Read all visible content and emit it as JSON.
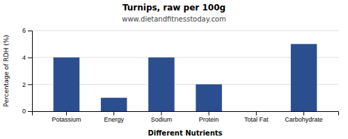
{
  "chart_data": {
    "type": "bar",
    "title": "Turnips, raw per 100g",
    "subtitle": "www.dietandfitnesstoday.com",
    "xlabel": "Different Nutrients",
    "ylabel": "Percentage of RDH (%)",
    "categories": [
      "Potassium",
      "Energy",
      "Sodium",
      "Protein",
      "Total Fat",
      "Carbohydrate"
    ],
    "values": [
      4.0,
      1.0,
      4.0,
      2.0,
      0.0,
      5.0
    ],
    "color": "#2b4f8e",
    "ylim": [
      0,
      6
    ],
    "yticks": [
      0,
      2,
      4,
      6
    ],
    "grid": true
  }
}
